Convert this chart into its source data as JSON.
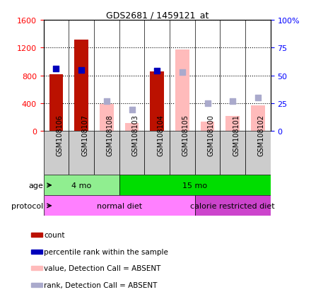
{
  "title": "GDS2681 / 1459121_at",
  "samples": [
    "GSM108106",
    "GSM108107",
    "GSM108108",
    "GSM108103",
    "GSM108104",
    "GSM108105",
    "GSM108100",
    "GSM108101",
    "GSM108102"
  ],
  "count_present": [
    820,
    1310,
    null,
    null,
    860,
    null,
    null,
    null,
    null
  ],
  "percentile_present": [
    56,
    55,
    null,
    null,
    54,
    null,
    null,
    null,
    null
  ],
  "count_absent": [
    null,
    null,
    390,
    110,
    null,
    1175,
    140,
    220,
    370
  ],
  "percentile_absent": [
    null,
    null,
    27,
    19,
    null,
    53,
    25,
    27,
    30
  ],
  "age_groups": [
    {
      "label": "4 mo",
      "start": 0,
      "end": 3,
      "color": "#90ee90"
    },
    {
      "label": "15 mo",
      "start": 3,
      "end": 9,
      "color": "#00dd00"
    }
  ],
  "protocol_groups": [
    {
      "label": "normal diet",
      "start": 0,
      "end": 6,
      "color": "#ff80ff"
    },
    {
      "label": "calorie restricted diet",
      "start": 6,
      "end": 9,
      "color": "#cc44cc"
    }
  ],
  "ylim_left": [
    0,
    1600
  ],
  "ylim_right": [
    0,
    100
  ],
  "yticks_left": [
    0,
    400,
    800,
    1200,
    1600
  ],
  "yticks_right": [
    0,
    25,
    50,
    75,
    100
  ],
  "ytick_labels_right": [
    "0",
    "25",
    "50",
    "75",
    "100%"
  ],
  "color_count_present": "#bb1100",
  "color_percentile_present": "#0000bb",
  "color_count_absent": "#ffbbbb",
  "color_percentile_absent": "#aaaacc",
  "bar_width": 0.55,
  "marker_size": 30,
  "legend_items": [
    {
      "label": "count",
      "color": "#bb1100"
    },
    {
      "label": "percentile rank within the sample",
      "color": "#0000bb"
    },
    {
      "label": "value, Detection Call = ABSENT",
      "color": "#ffbbbb"
    },
    {
      "label": "rank, Detection Call = ABSENT",
      "color": "#aaaacc"
    }
  ]
}
